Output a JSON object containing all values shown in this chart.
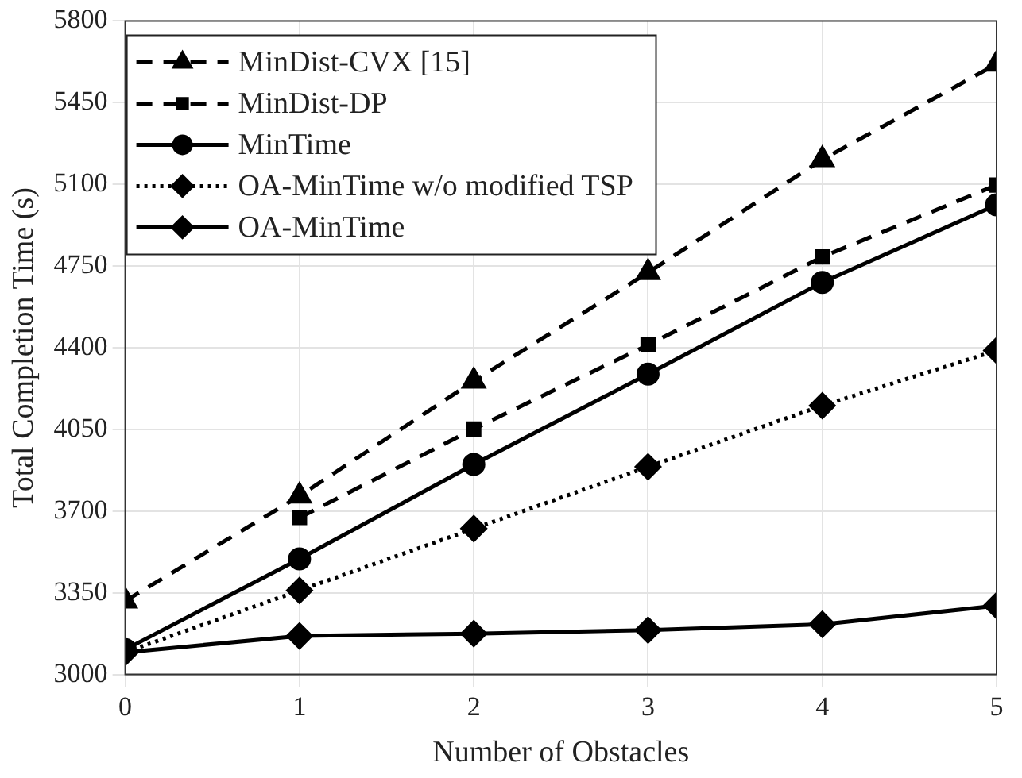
{
  "chart_data": {
    "type": "line",
    "xlabel": "Number of Obstacles",
    "ylabel": "Total Completion Time (s)",
    "x": [
      0,
      1,
      2,
      3,
      4,
      5
    ],
    "xlim": [
      0,
      5
    ],
    "xticks": [
      0,
      1,
      2,
      3,
      4,
      5
    ],
    "ylim": [
      3000,
      5800
    ],
    "yticks": [
      3000,
      3350,
      3700,
      4050,
      4400,
      4750,
      5100,
      5450,
      5800
    ],
    "grid": true,
    "legend": "top left",
    "series": [
      {
        "name": "MinDist-CVX [15]",
        "color": "#000000",
        "marker": "triangle",
        "line_style": "dashed",
        "values": [
          3315,
          3765,
          4257,
          4722,
          5206,
          5615
        ]
      },
      {
        "name": "MinDist-DP",
        "color": "#000000",
        "marker": "square",
        "line_style": "dashed",
        "values": [
          null,
          3672,
          4052,
          4412,
          4789,
          5097
        ]
      },
      {
        "name": "MinTime",
        "color": "#000000",
        "marker": "circle",
        "line_style": "solid",
        "values": [
          3107,
          3495,
          3900,
          4287,
          4680,
          5012
        ]
      },
      {
        "name": "OA-MinTime w/o modified TSP",
        "color": "#000000",
        "marker": "diamond",
        "line_style": "dotted",
        "values": [
          3095,
          3360,
          3625,
          3890,
          4152,
          4388
        ]
      },
      {
        "name": "OA-MinTime",
        "color": "#000000",
        "marker": "diamond",
        "line_style": "solid",
        "values": [
          3095,
          3165,
          3175,
          3190,
          3215,
          3295
        ]
      }
    ]
  }
}
